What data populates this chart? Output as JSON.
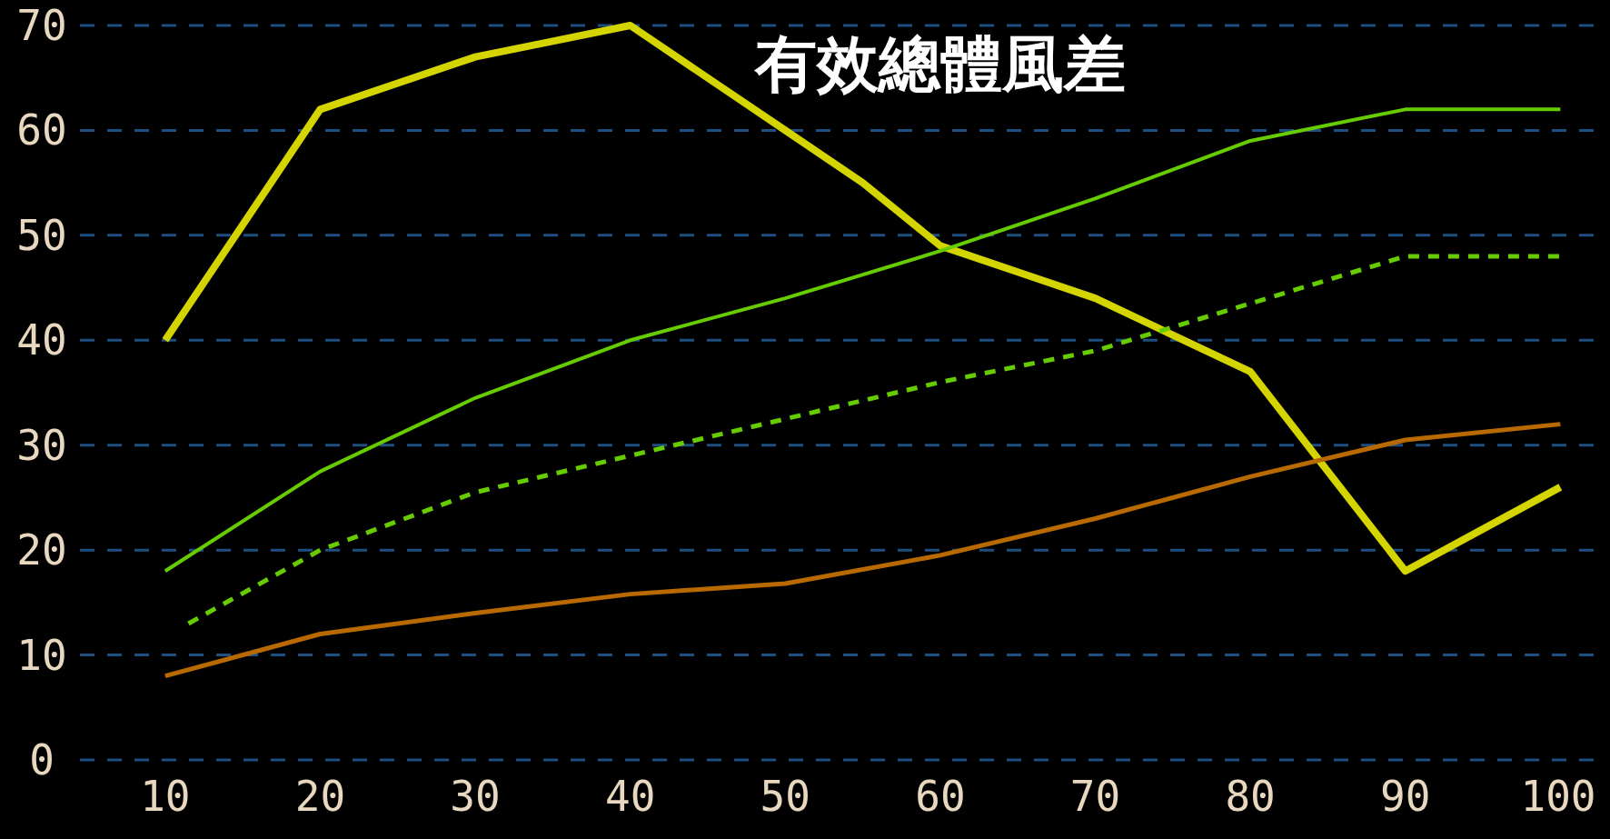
{
  "chart_data": {
    "type": "line",
    "title": "有效總體風差",
    "xlim": [
      4.5,
      102.5
    ],
    "ylim": [
      0,
      70
    ],
    "xticks": [
      10,
      20,
      30,
      40,
      50,
      60,
      70,
      80,
      90,
      100
    ],
    "yticks": [
      0,
      10,
      20,
      30,
      40,
      50,
      60,
      70
    ],
    "grid": "y",
    "series": [
      {
        "color": "#d4d400",
        "line_style": "solid",
        "x": [
          10,
          20,
          25,
          30,
          35,
          40,
          45,
          50,
          55,
          60,
          65,
          70,
          75,
          80,
          90,
          100
        ],
        "values": [
          40,
          62,
          64.5,
          67,
          68.5,
          70,
          65,
          60,
          55,
          49,
          46.5,
          44,
          40.5,
          37,
          18,
          26
        ]
      },
      {
        "color": "#66cc00",
        "line_style": "solid",
        "x": [
          10,
          20,
          30,
          40,
          50,
          60,
          70,
          80,
          90,
          100
        ],
        "values": [
          18,
          27.5,
          34.5,
          40,
          44,
          48.5,
          53.5,
          59,
          62,
          62
        ]
      },
      {
        "color": "#66cc00",
        "line_style": "dashed",
        "x": [
          11.5,
          20,
          30,
          40,
          50,
          60,
          70,
          80,
          90,
          100
        ],
        "values": [
          13,
          20,
          25.5,
          29,
          32.5,
          36,
          39,
          43.5,
          48,
          48
        ]
      },
      {
        "color": "#b86a00",
        "line_style": "solid",
        "x": [
          10,
          20,
          30,
          40,
          50,
          60,
          70,
          80,
          90,
          100
        ],
        "values": [
          8,
          12,
          14,
          15.8,
          16.8,
          19.5,
          23,
          27,
          30.5,
          32
        ]
      }
    ]
  }
}
